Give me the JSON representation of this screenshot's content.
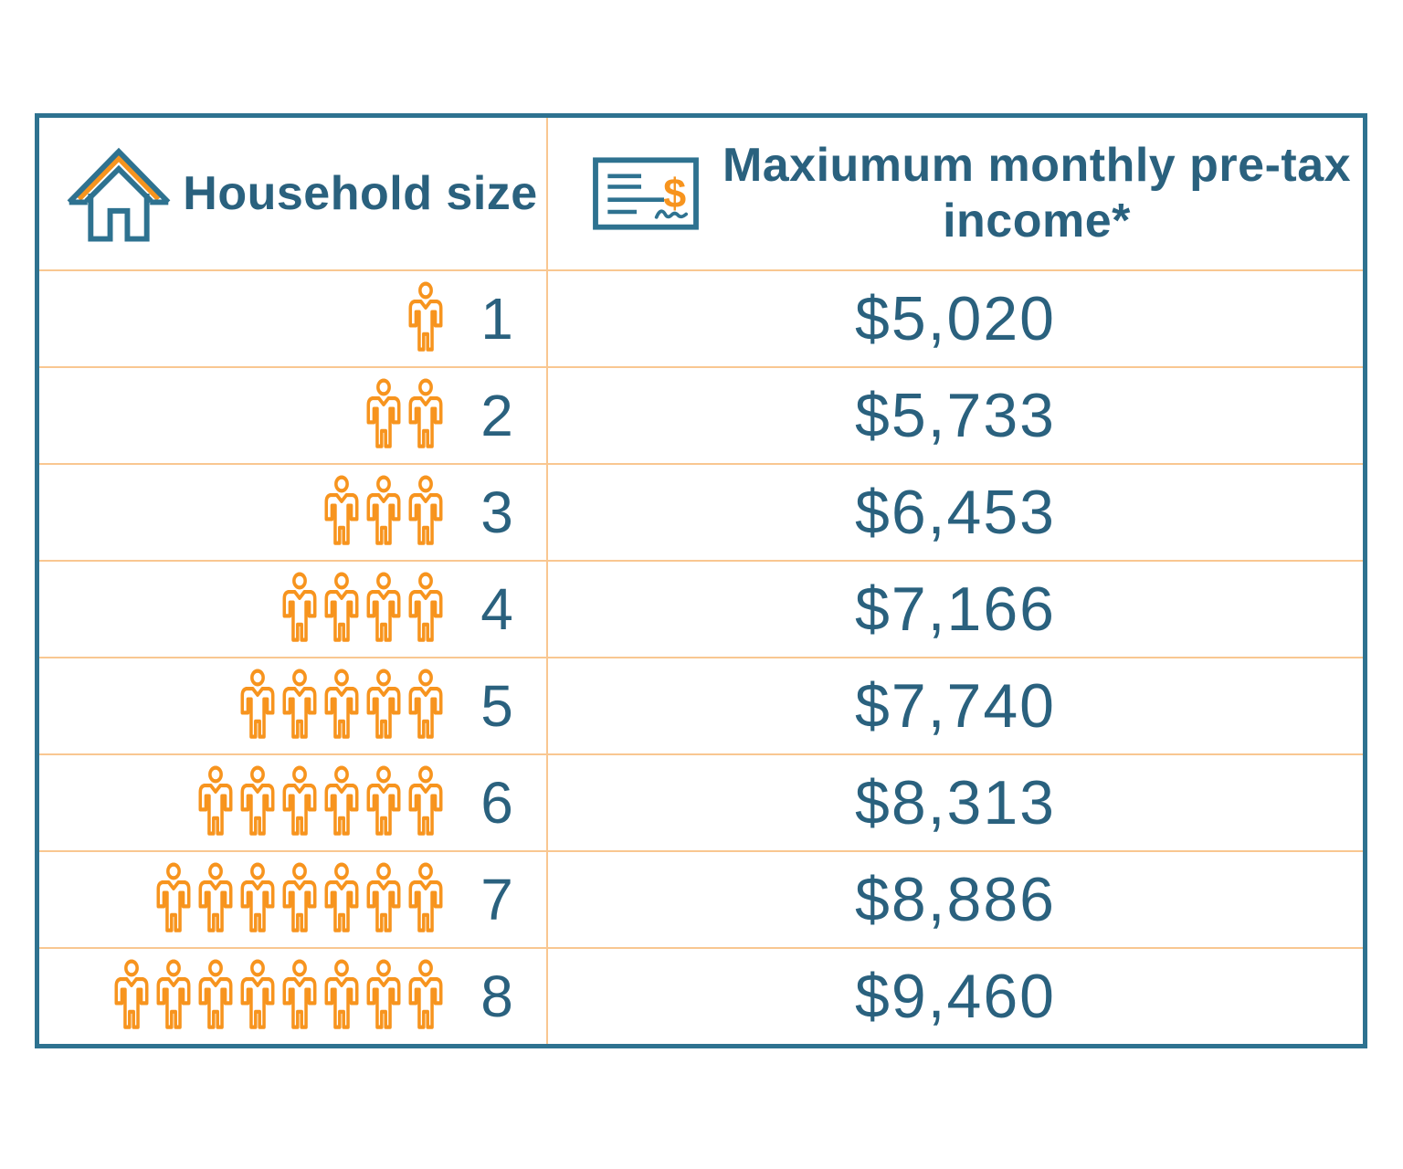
{
  "header": {
    "household_label": "Household size",
    "household_icon": "house-icon",
    "income_label": "Maxiumum monthly pre-tax income*",
    "income_icon": "check-icon"
  },
  "rows": [
    {
      "size": "1",
      "icon_count": 1,
      "income": "$5,020"
    },
    {
      "size": "2",
      "icon_count": 2,
      "income": "$5,733"
    },
    {
      "size": "3",
      "icon_count": 3,
      "income": "$6,453"
    },
    {
      "size": "4",
      "icon_count": 4,
      "income": "$7,166"
    },
    {
      "size": "5",
      "icon_count": 5,
      "income": "$7,740"
    },
    {
      "size": "6",
      "icon_count": 6,
      "income": "$8,313"
    },
    {
      "size": "7",
      "icon_count": 7,
      "income": "$8,886"
    },
    {
      "size": "8",
      "icon_count": 8,
      "income": "$9,460"
    }
  ],
  "icons": {
    "person_icon": "person-icon",
    "house_icon": "house-icon",
    "check_icon": "check-icon",
    "check_dollar_glyph": "$"
  },
  "colors": {
    "teal_text": "#2A617E",
    "teal_border": "#2E7290",
    "orange": "#F7941E",
    "divider": "#F9C791",
    "bg": "#FFFFFF"
  },
  "chart_data": {
    "type": "table",
    "title": "",
    "columns": [
      "Household size",
      "Maxiumum monthly pre-tax income*"
    ],
    "household_sizes": [
      1,
      2,
      3,
      4,
      5,
      6,
      7,
      8
    ],
    "max_monthly_pretax_income_usd": [
      5020,
      5733,
      6453,
      7166,
      7740,
      8313,
      8886,
      9460
    ],
    "rows": [
      [
        1,
        "$5,020"
      ],
      [
        2,
        "$5,733"
      ],
      [
        3,
        "$6,453"
      ],
      [
        4,
        "$7,166"
      ],
      [
        5,
        "$7,740"
      ],
      [
        6,
        "$8,313"
      ],
      [
        7,
        "$8,886"
      ],
      [
        8,
        "$9,460"
      ]
    ],
    "notes": "Left column shows orange person pictograms equal to household size; asterisk on income header refers to an unshown footnote; header contains original typo 'Maxiumum'."
  }
}
